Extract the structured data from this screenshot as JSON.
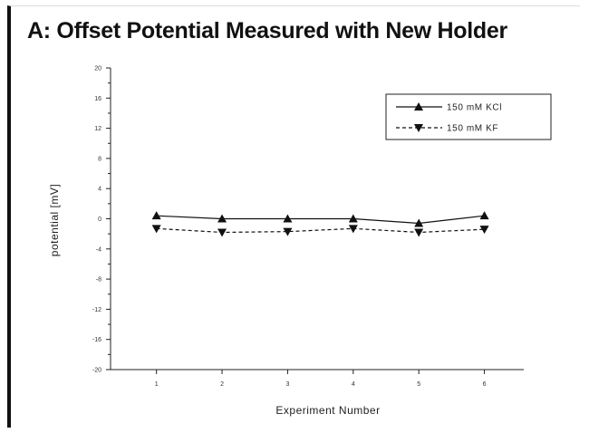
{
  "chart_data": {
    "type": "line",
    "title": "A: Offset Potential Measured with New Holder",
    "xlabel": "Experiment Number",
    "ylabel": "potential [mV]",
    "x": [
      1,
      2,
      3,
      4,
      5,
      6
    ],
    "xlim": [
      0.3,
      6.6
    ],
    "ylim": [
      -20,
      20
    ],
    "yticks": [
      -20,
      -16,
      -12,
      -8,
      -4,
      0,
      4,
      8,
      12,
      16,
      20
    ],
    "xticks": [
      1,
      2,
      3,
      4,
      5,
      6
    ],
    "grid": false,
    "legend_position": "top-right",
    "series": [
      {
        "name": "150 mM KCl",
        "marker": "triangle-up",
        "line": "solid",
        "color": "#111111",
        "values": [
          0.4,
          0.0,
          0.0,
          0.0,
          -0.6,
          0.4
        ]
      },
      {
        "name": "150 mM KF",
        "marker": "triangle-down",
        "line": "dashed",
        "color": "#111111",
        "values": [
          -1.3,
          -1.8,
          -1.7,
          -1.3,
          -1.8,
          -1.4
        ]
      }
    ]
  }
}
